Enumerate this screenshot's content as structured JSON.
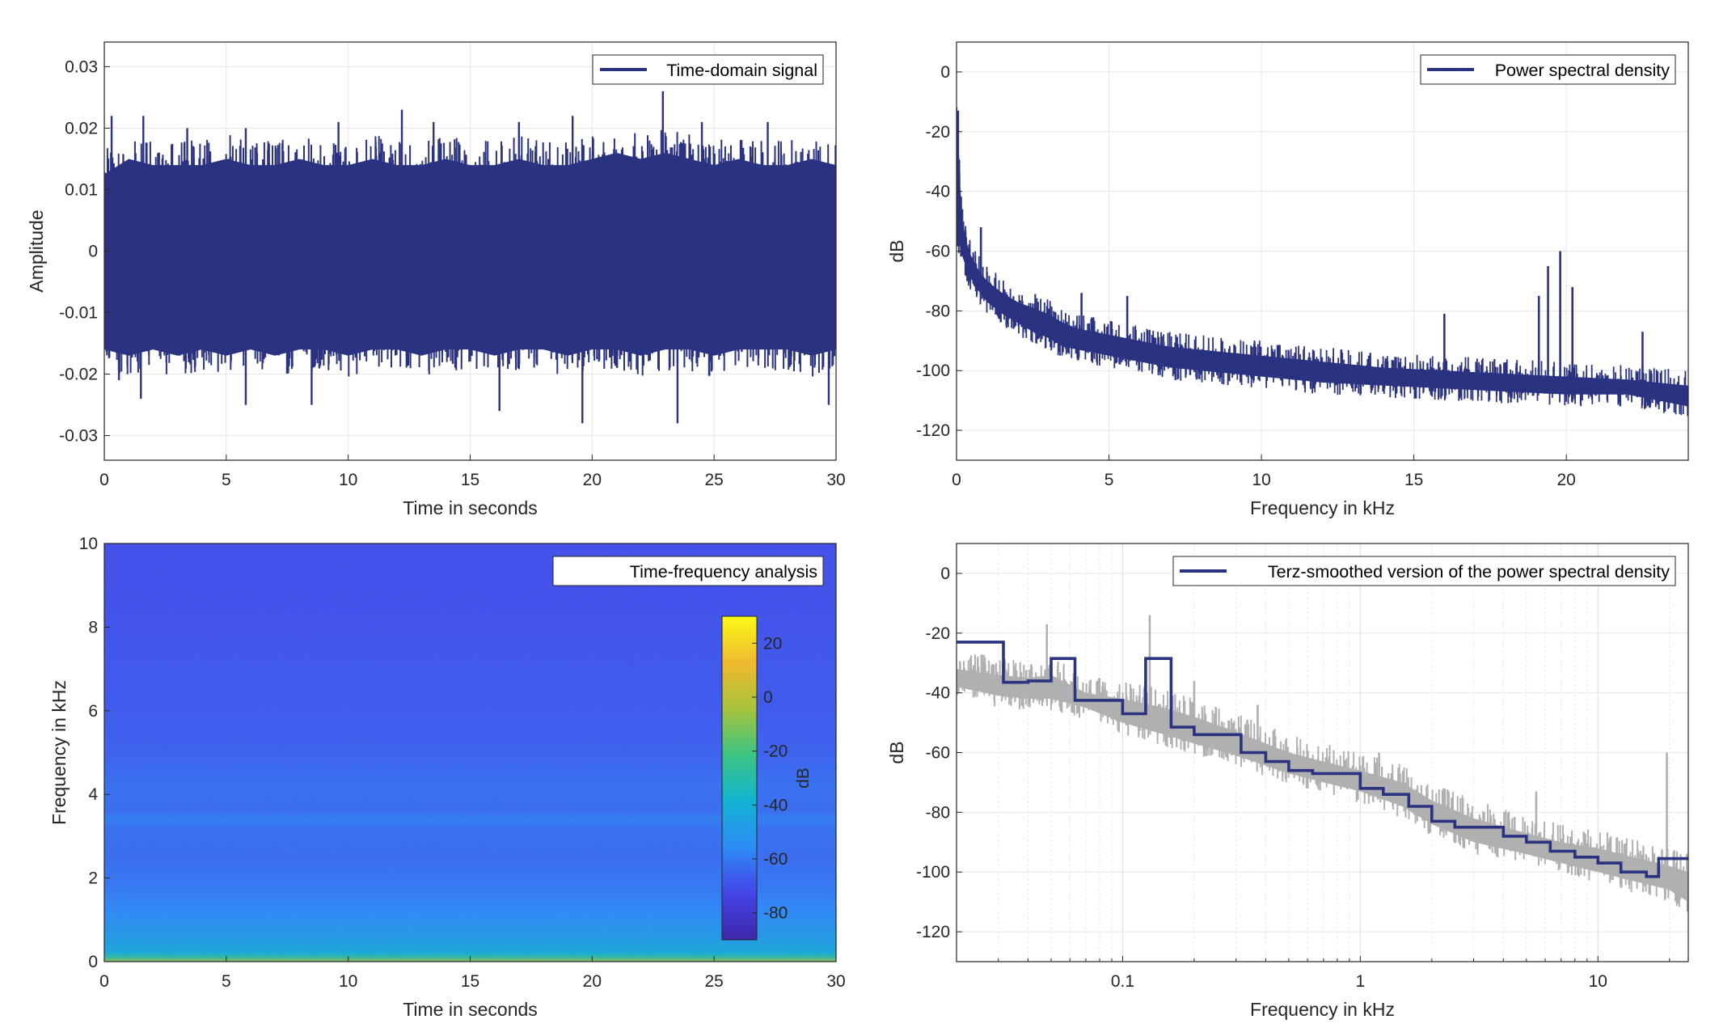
{
  "chart_data": [
    {
      "type": "line",
      "legend": "Time-domain signal",
      "legend_position": "top-right",
      "xlabel": "Time in seconds",
      "ylabel": "Amplitude",
      "xlim": [
        0,
        30
      ],
      "ylim": [
        -0.034,
        0.034
      ],
      "xticks": [
        0,
        5,
        10,
        15,
        20,
        25,
        30
      ],
      "yticks": [
        -0.03,
        -0.02,
        -0.01,
        0,
        0.01,
        0.02,
        0.03
      ],
      "grid": true,
      "line_color": "#2b3381",
      "envelope": {
        "t": [
          0,
          1,
          2,
          3,
          4,
          5,
          6,
          7,
          8,
          9,
          10,
          11,
          12,
          13,
          14,
          15,
          16,
          17,
          18,
          19,
          20,
          21,
          22,
          23,
          24,
          25,
          26,
          27,
          28,
          29,
          30
        ],
        "upper": [
          0.0125,
          0.015,
          0.014,
          0.014,
          0.014,
          0.015,
          0.014,
          0.014,
          0.015,
          0.014,
          0.014,
          0.015,
          0.014,
          0.014,
          0.015,
          0.014,
          0.014,
          0.015,
          0.014,
          0.014,
          0.015,
          0.016,
          0.015,
          0.016,
          0.015,
          0.014,
          0.015,
          0.014,
          0.014,
          0.015,
          0.014
        ],
        "lower": [
          -0.016,
          -0.017,
          -0.016,
          -0.017,
          -0.016,
          -0.017,
          -0.016,
          -0.017,
          -0.016,
          -0.016,
          -0.017,
          -0.016,
          -0.016,
          -0.017,
          -0.016,
          -0.016,
          -0.017,
          -0.016,
          -0.016,
          -0.017,
          -0.016,
          -0.016,
          -0.017,
          -0.016,
          -0.016,
          -0.017,
          -0.016,
          -0.016,
          -0.016,
          -0.017,
          -0.016
        ]
      },
      "peaks": [
        {
          "t": 0.3,
          "v": 0.022
        },
        {
          "t": 1.6,
          "v": 0.022
        },
        {
          "t": 3.4,
          "v": 0.02
        },
        {
          "t": 5.8,
          "v": 0.02
        },
        {
          "t": 9.6,
          "v": 0.021
        },
        {
          "t": 12.2,
          "v": 0.023
        },
        {
          "t": 13.5,
          "v": 0.021
        },
        {
          "t": 17.0,
          "v": 0.021
        },
        {
          "t": 19.2,
          "v": 0.022
        },
        {
          "t": 22.9,
          "v": 0.026
        },
        {
          "t": 24.5,
          "v": 0.021
        },
        {
          "t": 27.2,
          "v": 0.021
        },
        {
          "t": 0.6,
          "v": -0.021
        },
        {
          "t": 1.5,
          "v": -0.024
        },
        {
          "t": 5.8,
          "v": -0.025
        },
        {
          "t": 8.5,
          "v": -0.025
        },
        {
          "t": 16.2,
          "v": -0.026
        },
        {
          "t": 19.6,
          "v": -0.028
        },
        {
          "t": 23.5,
          "v": -0.028
        },
        {
          "t": 29.7,
          "v": -0.025
        }
      ]
    },
    {
      "type": "line",
      "legend": "Power spectral density",
      "legend_position": "top-right",
      "xlabel": "Frequency in kHz",
      "ylabel": "dB",
      "xlim": [
        0,
        24
      ],
      "ylim": [
        -130,
        10
      ],
      "xticks": [
        0,
        5,
        10,
        15,
        20
      ],
      "yticks": [
        -120,
        -100,
        -80,
        -60,
        -40,
        -20,
        0
      ],
      "grid": true,
      "line_color": "#2b3381",
      "band": {
        "f": [
          0,
          0.1,
          0.2,
          0.4,
          0.7,
          1,
          1.5,
          2,
          2.5,
          3,
          3.5,
          4,
          5,
          6,
          7,
          8,
          9,
          10,
          12,
          14,
          16,
          18,
          20,
          22,
          24
        ],
        "upper": [
          -15,
          -35,
          -50,
          -60,
          -66,
          -70,
          -74,
          -77,
          -79,
          -81,
          -84,
          -86,
          -88,
          -90,
          -92,
          -93,
          -94,
          -95,
          -97,
          -99,
          -100,
          -101,
          -102,
          -103,
          -105
        ],
        "lower": [
          -55,
          -58,
          -62,
          -68,
          -73,
          -77,
          -81,
          -84,
          -87,
          -89,
          -92,
          -93,
          -95,
          -97,
          -99,
          -100,
          -101,
          -102,
          -104,
          -105,
          -106,
          -107,
          -108,
          -108,
          -112
        ]
      },
      "peaks": [
        {
          "f": 0.05,
          "v": -13
        },
        {
          "f": 0.8,
          "v": -52
        },
        {
          "f": 4.1,
          "v": -74
        },
        {
          "f": 5.6,
          "v": -75
        },
        {
          "f": 16.0,
          "v": -81
        },
        {
          "f": 19.1,
          "v": -75
        },
        {
          "f": 19.4,
          "v": -65
        },
        {
          "f": 19.8,
          "v": -60
        },
        {
          "f": 20.2,
          "v": -72
        },
        {
          "f": 22.5,
          "v": -87
        }
      ]
    },
    {
      "type": "heatmap",
      "legend": "Time-frequency analysis",
      "legend_position": "top-right",
      "xlabel": "Time in seconds",
      "ylabel": "Frequency in kHz",
      "xlim": [
        0,
        30
      ],
      "ylim": [
        0,
        10
      ],
      "xticks": [
        0,
        5,
        10,
        15,
        20,
        25,
        30
      ],
      "yticks": [
        0,
        2,
        4,
        6,
        8,
        10
      ],
      "colorbar": {
        "label": "dB",
        "limits": [
          -90,
          30
        ],
        "ticks": [
          -80,
          -60,
          -40,
          -20,
          0,
          20
        ],
        "stops": [
          "#3e26a8",
          "#4444e8",
          "#2d8bf5",
          "#12b3d2",
          "#3cc583",
          "#a6c33c",
          "#f1b92f",
          "#f9fb15"
        ]
      },
      "frequency_profile_db": {
        "f": [
          0,
          0.1,
          0.2,
          0.3,
          0.5,
          0.8,
          1.2,
          1.8,
          2.5,
          3.2,
          3.4,
          3.6,
          4.2,
          5,
          6,
          7,
          8,
          9,
          10
        ],
        "level": [
          -5,
          -25,
          -38,
          -42,
          -46,
          -50,
          -55,
          -60,
          -63,
          -62,
          -58,
          -63,
          -62,
          -66,
          -68,
          -69,
          -70,
          -71,
          -71
        ]
      }
    },
    {
      "type": "line",
      "legend": "Terz-smoothed version of the power spectral density",
      "legend_position": "top-right",
      "xlabel": "Frequency in kHz",
      "ylabel": "dB",
      "xscale": "log",
      "xlim": [
        0.02,
        24
      ],
      "ylim": [
        -130,
        10
      ],
      "xticks": [
        0.1,
        1,
        10
      ],
      "xticklabels": [
        "0.1",
        "1",
        "10"
      ],
      "yticks": [
        -120,
        -100,
        -80,
        -60,
        -40,
        -20,
        0
      ],
      "grid": true,
      "series": [
        {
          "role": "raw-psd",
          "color": "#b0b0b0",
          "f": [
            0.02,
            0.03,
            0.04,
            0.05,
            0.07,
            0.1,
            0.15,
            0.2,
            0.3,
            0.5,
            0.7,
            1,
            1.5,
            2,
            3,
            5,
            7,
            10,
            14,
            18,
            20,
            24
          ],
          "upper": [
            -32,
            -34,
            -35,
            -34,
            -40,
            -42,
            -45,
            -48,
            -53,
            -60,
            -63,
            -66,
            -70,
            -76,
            -82,
            -87,
            -90,
            -92,
            -95,
            -97,
            -98,
            -100
          ],
          "lower": [
            -38,
            -41,
            -42,
            -42,
            -45,
            -50,
            -54,
            -57,
            -61,
            -67,
            -70,
            -73,
            -78,
            -84,
            -90,
            -94,
            -97,
            -100,
            -103,
            -105,
            -106,
            -110
          ],
          "peaks": [
            {
              "f": 0.048,
              "v": -17
            },
            {
              "f": 0.13,
              "v": -14
            },
            {
              "f": 0.2,
              "v": -36
            },
            {
              "f": 0.37,
              "v": -44
            },
            {
              "f": 1.2,
              "v": -60
            },
            {
              "f": 5.5,
              "v": -73
            },
            {
              "f": 19.5,
              "v": -60
            }
          ]
        },
        {
          "role": "terz-smoothed",
          "color": "#2b3381",
          "steps": [
            {
              "f0": 0.02,
              "f1": 0.0315,
              "v": -23
            },
            {
              "f0": 0.0315,
              "f1": 0.04,
              "v": -36.5
            },
            {
              "f0": 0.04,
              "f1": 0.05,
              "v": -36
            },
            {
              "f0": 0.05,
              "f1": 0.063,
              "v": -28.5
            },
            {
              "f0": 0.063,
              "f1": 0.08,
              "v": -42.5
            },
            {
              "f0": 0.08,
              "f1": 0.1,
              "v": -42.5
            },
            {
              "f0": 0.1,
              "f1": 0.125,
              "v": -47
            },
            {
              "f0": 0.125,
              "f1": 0.16,
              "v": -28.5
            },
            {
              "f0": 0.16,
              "f1": 0.2,
              "v": -51.5
            },
            {
              "f0": 0.2,
              "f1": 0.25,
              "v": -54
            },
            {
              "f0": 0.25,
              "f1": 0.315,
              "v": -54
            },
            {
              "f0": 0.315,
              "f1": 0.4,
              "v": -60
            },
            {
              "f0": 0.4,
              "f1": 0.5,
              "v": -63
            },
            {
              "f0": 0.5,
              "f1": 0.63,
              "v": -66
            },
            {
              "f0": 0.63,
              "f1": 0.8,
              "v": -67
            },
            {
              "f0": 0.8,
              "f1": 1.0,
              "v": -67
            },
            {
              "f0": 1.0,
              "f1": 1.25,
              "v": -72
            },
            {
              "f0": 1.25,
              "f1": 1.6,
              "v": -74
            },
            {
              "f0": 1.6,
              "f1": 2.0,
              "v": -78
            },
            {
              "f0": 2.0,
              "f1": 2.5,
              "v": -83
            },
            {
              "f0": 2.5,
              "f1": 3.15,
              "v": -85
            },
            {
              "f0": 3.15,
              "f1": 4.0,
              "v": -85
            },
            {
              "f0": 4.0,
              "f1": 5.0,
              "v": -88
            },
            {
              "f0": 5.0,
              "f1": 6.3,
              "v": -90
            },
            {
              "f0": 6.3,
              "f1": 8.0,
              "v": -93
            },
            {
              "f0": 8.0,
              "f1": 10.0,
              "v": -95
            },
            {
              "f0": 10.0,
              "f1": 12.5,
              "v": -97
            },
            {
              "f0": 12.5,
              "f1": 16.0,
              "v": -100
            },
            {
              "f0": 16.0,
              "f1": 18.0,
              "v": -101.5
            },
            {
              "f0": 18.0,
              "f1": 24.0,
              "v": -95.5
            }
          ]
        }
      ]
    }
  ]
}
